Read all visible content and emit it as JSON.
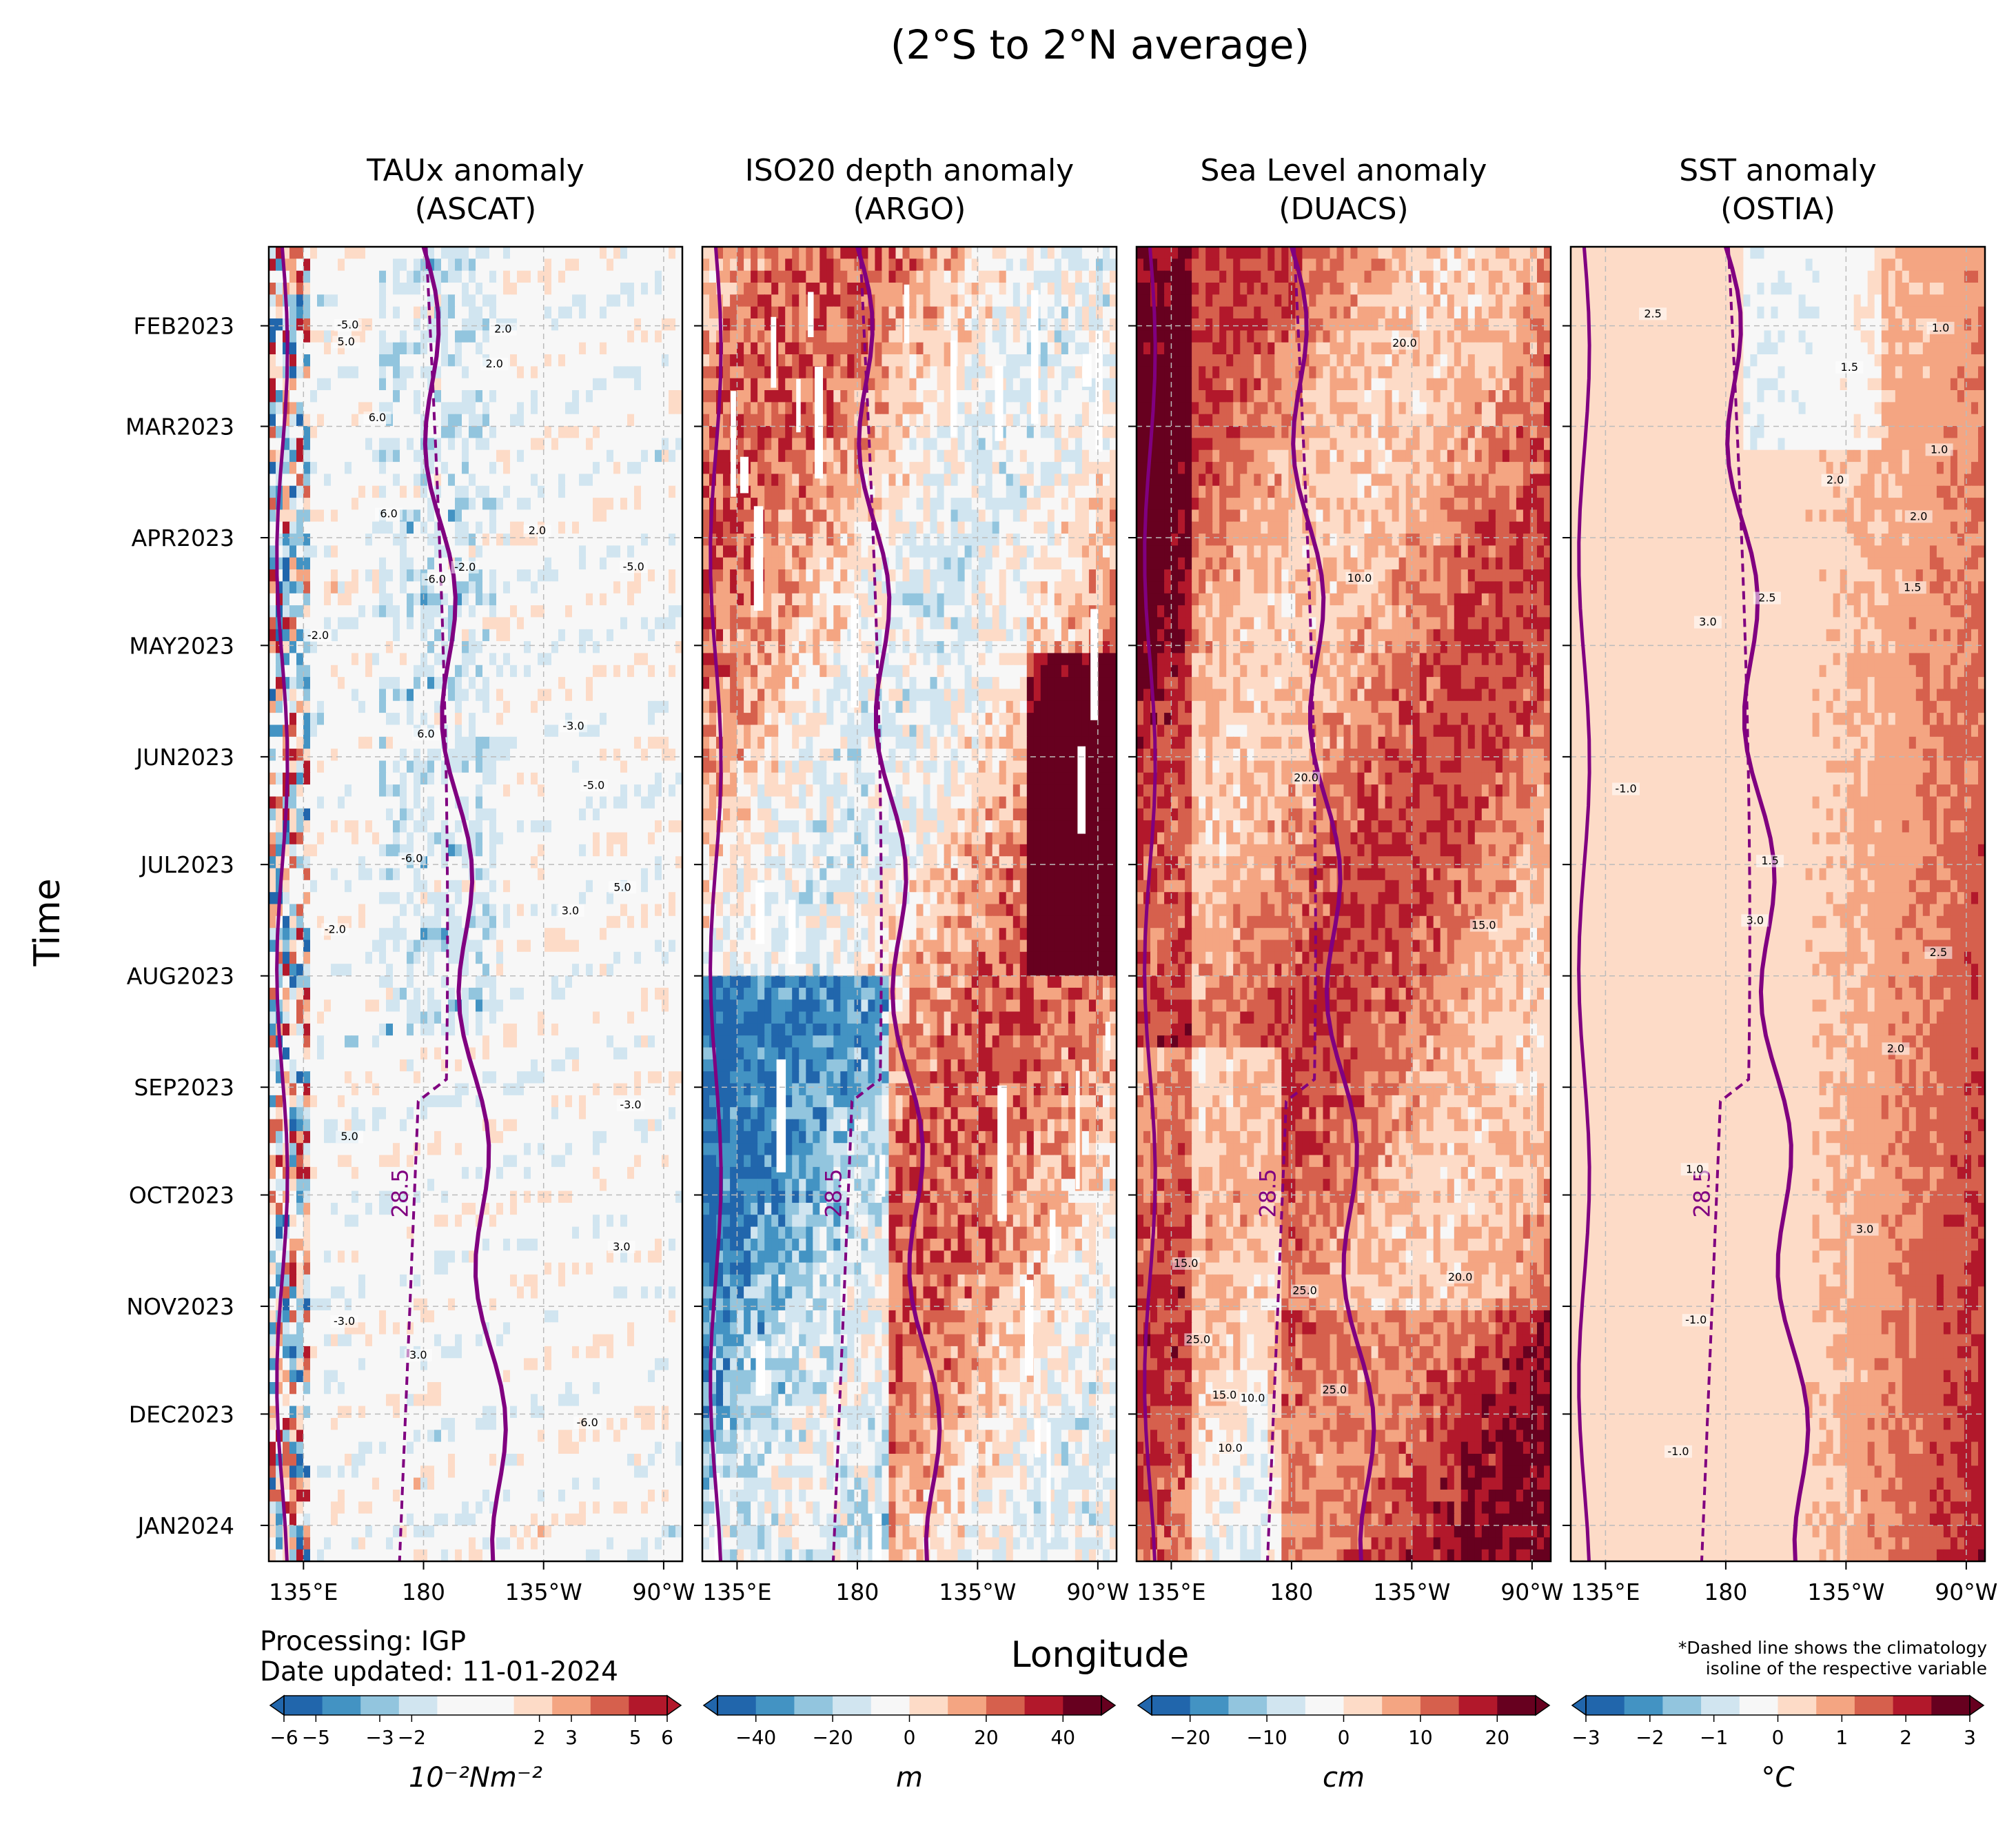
{
  "figure": {
    "suptitle": "(2°S to 2°N average)",
    "ylabel": "Time",
    "xlabel": "Longitude",
    "processing": "Processing: IGP",
    "updated": "Date updated: 11-01-2024",
    "note_line1": "*Dashed line shows the climatology",
    "note_line2": "isoline of the respective variable"
  },
  "chart_data": [
    {
      "type": "heatmap",
      "title_line1": "TAUx anomaly",
      "title_line2": "(ASCAT)",
      "xticklabels": [
        "135°E",
        "180",
        "135°W",
        "90°W"
      ],
      "xtick_lon": [
        135,
        180,
        225,
        270
      ],
      "xlim": [
        122,
        277
      ],
      "yticklabels": [
        "FEB2023",
        "MAR2023",
        "APR2023",
        "MAY2023",
        "JUN2023",
        "JUL2023",
        "AUG2023",
        "SEP2023",
        "OCT2023",
        "NOV2023",
        "DEC2023",
        "JAN2024"
      ],
      "ylim": [
        "2023-01-10",
        "2024-01-11"
      ],
      "isoline_label": "28.5",
      "colorbar": {
        "label": "10⁻²Nm⁻²",
        "ticks": [
          -6,
          -5,
          -3,
          -2,
          2,
          3,
          5,
          6
        ],
        "ticklabels": [
          "−6",
          "−5",
          "−3",
          "−2",
          "2",
          "3",
          "5",
          "6"
        ],
        "range": [
          -6,
          6
        ],
        "colors": [
          "#2166ac",
          "#4393c3",
          "#92c5de",
          "#d1e5f0",
          "#f7f7f7",
          "#f7f7f7",
          "#fddbc7",
          "#f4a582",
          "#d6604d",
          "#b2182b"
        ]
      },
      "contour_labels": [
        "-3.0",
        "-2.0",
        "-5.0",
        "-6.0",
        "2.0",
        "3.0",
        "5.0",
        "6.0"
      ],
      "field_style": "zonal-bands"
    },
    {
      "type": "heatmap",
      "title_line1": "ISO20 depth anomaly",
      "title_line2": "(ARGO)",
      "xticklabels": [
        "135°E",
        "180",
        "135°W",
        "90°W"
      ],
      "xtick_lon": [
        135,
        180,
        225,
        270
      ],
      "xlim": [
        122,
        277
      ],
      "yticklabels": [
        "FEB2023",
        "MAR2023",
        "APR2023",
        "MAY2023",
        "JUN2023",
        "JUL2023",
        "AUG2023",
        "SEP2023",
        "OCT2023",
        "NOV2023",
        "DEC2023",
        "JAN2024"
      ],
      "ylim": [
        "2023-01-10",
        "2024-01-11"
      ],
      "isoline_label": "28.5",
      "colorbar": {
        "label": "m",
        "ticks": [
          -40,
          -20,
          0,
          20,
          40
        ],
        "ticklabels": [
          "−40",
          "−20",
          "0",
          "20",
          "40"
        ],
        "range": [
          -50,
          50
        ],
        "colors": [
          "#2166ac",
          "#4393c3",
          "#92c5de",
          "#d1e5f0",
          "#f7f7f7",
          "#fddbc7",
          "#f4a582",
          "#d6604d",
          "#b2182b",
          "#67001f"
        ]
      },
      "contour_labels": [],
      "field_style": "blocks"
    },
    {
      "type": "heatmap",
      "title_line1": "Sea Level anomaly",
      "title_line2": "(DUACS)",
      "xticklabels": [
        "135°E",
        "180",
        "135°W",
        "90°W"
      ],
      "xtick_lon": [
        135,
        180,
        225,
        270
      ],
      "xlim": [
        122,
        277
      ],
      "yticklabels": [
        "FEB2023",
        "MAR2023",
        "APR2023",
        "MAY2023",
        "JUN2023",
        "JUL2023",
        "AUG2023",
        "SEP2023",
        "OCT2023",
        "NOV2023",
        "DEC2023",
        "JAN2024"
      ],
      "ylim": [
        "2023-01-10",
        "2024-01-11"
      ],
      "isoline_label": "28.5",
      "colorbar": {
        "label": "cm",
        "ticks": [
          -20,
          -10,
          0,
          10,
          20
        ],
        "ticklabels": [
          "−20",
          "−10",
          "0",
          "10",
          "20"
        ],
        "range": [
          -25,
          25
        ],
        "colors": [
          "#2166ac",
          "#4393c3",
          "#92c5de",
          "#d1e5f0",
          "#f7f7f7",
          "#fddbc7",
          "#f4a582",
          "#d6604d",
          "#b2182b",
          "#67001f"
        ]
      },
      "contour_labels": [
        "10.0",
        "15.0",
        "20.0",
        "25.0"
      ],
      "field_style": "smooth-warm"
    },
    {
      "type": "heatmap",
      "title_line1": "SST anomaly",
      "title_line2": "(OSTIA)",
      "xticklabels": [
        "135°E",
        "180",
        "135°W",
        "90°W"
      ],
      "xtick_lon": [
        135,
        180,
        225,
        270
      ],
      "xlim": [
        122,
        277
      ],
      "yticklabels": [
        "FEB2023",
        "MAR2023",
        "APR2023",
        "MAY2023",
        "JUN2023",
        "JUL2023",
        "AUG2023",
        "SEP2023",
        "OCT2023",
        "NOV2023",
        "DEC2023",
        "JAN2024"
      ],
      "ylim": [
        "2023-01-10",
        "2024-01-11"
      ],
      "isoline_label": "28.5",
      "colorbar": {
        "label": "°C",
        "ticks": [
          -3,
          -2,
          -1,
          0,
          1,
          2,
          3
        ],
        "ticklabels": [
          "−3",
          "−2",
          "−1",
          "0",
          "1",
          "2",
          "3"
        ],
        "range": [
          -3,
          3
        ],
        "colors": [
          "#2166ac",
          "#4393c3",
          "#92c5de",
          "#d1e5f0",
          "#f7f7f7",
          "#fddbc7",
          "#f4a582",
          "#d6604d",
          "#b2182b",
          "#67001f"
        ]
      },
      "contour_labels": [
        "-1.0",
        "1.0",
        "1.5",
        "2.0",
        "2.5",
        "3.0"
      ],
      "field_style": "east-warming"
    }
  ]
}
